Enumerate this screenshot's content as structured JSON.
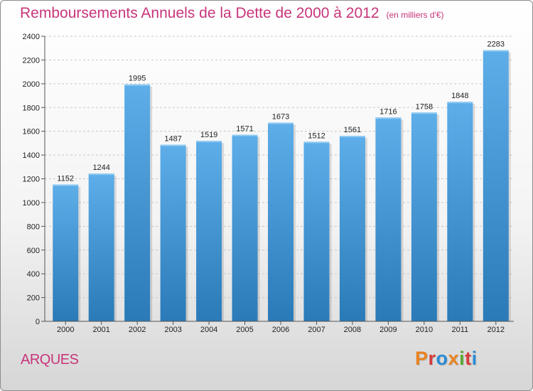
{
  "header": {
    "title": "Remboursements Annuels de la Dette de 2000 à 2012",
    "unit": "(en milliers d'€)"
  },
  "footer": {
    "commune": "ARQUES",
    "logo": "Proxiti"
  },
  "colors": {
    "title": "#c8357a",
    "bar_top": "#5daee9",
    "bar_bottom": "#2a7ab8",
    "logo_letters": [
      "#e8821e",
      "#d63b3b",
      "#2a8bd4",
      "#e8821e",
      "#5aa832",
      "#d63b3b",
      "#2a8bd4"
    ]
  },
  "chart_data": {
    "type": "bar",
    "categories": [
      "2000",
      "2001",
      "2002",
      "2003",
      "2004",
      "2005",
      "2006",
      "2007",
      "2008",
      "2009",
      "2010",
      "2011",
      "2012"
    ],
    "values": [
      1152,
      1244,
      1995,
      1487,
      1519,
      1571,
      1673,
      1512,
      1561,
      1716,
      1758,
      1848,
      2283
    ],
    "title": "Remboursements Annuels de la Dette de 2000 à 2012",
    "ylim": [
      0,
      2400
    ],
    "yticks": [
      0,
      200,
      400,
      600,
      800,
      1000,
      1200,
      1400,
      1600,
      1800,
      2000,
      2200,
      2400
    ],
    "grid": true,
    "data_labels": true
  }
}
